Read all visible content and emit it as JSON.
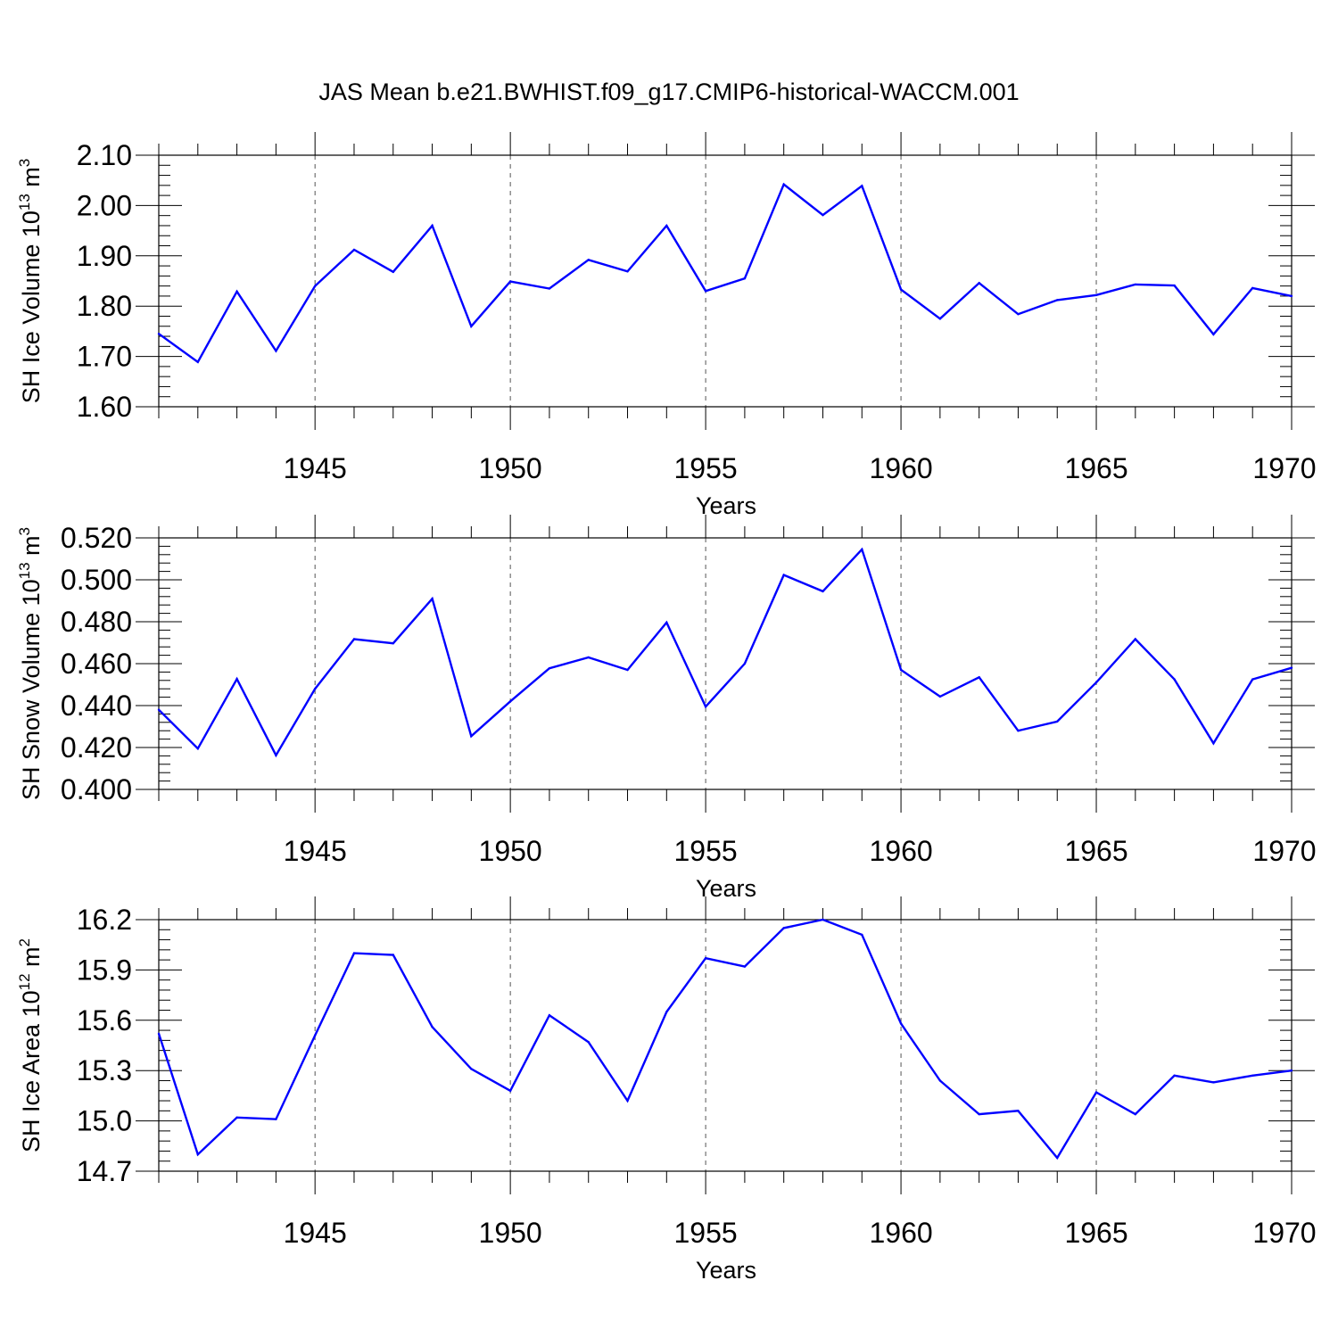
{
  "figure": {
    "title": "JAS Mean b.e21.BWHIST.f09_g17.CMIP6-historical-WACCM.001"
  },
  "colors": {
    "line": "#0000ff",
    "axis": "#000000"
  },
  "chart_data": [
    {
      "type": "line",
      "title": "",
      "xlabel": "Years",
      "ylabel": "SH Ice Volume 10",
      "ylabel_exp": "13",
      "ylabel_unit": " m",
      "ylabel_unit_exp": "3",
      "xlim": [
        1941,
        1970
      ],
      "ylim": [
        1.6,
        2.1
      ],
      "xticks": [
        1945,
        1950,
        1955,
        1960,
        1965,
        1970
      ],
      "xtick_labels": [
        "1945",
        "1950",
        "1955",
        "1960",
        "1965",
        "1970"
      ],
      "yticks": [
        1.6,
        1.7,
        1.8,
        1.9,
        2.0,
        2.1
      ],
      "ytick_labels": [
        "1.60",
        "1.70",
        "1.80",
        "1.90",
        "2.00",
        "2.10"
      ],
      "yminor_step": 0.02,
      "grid": "vertical dashed at major x ticks",
      "x": [
        1941,
        1942,
        1943,
        1944,
        1945,
        1946,
        1947,
        1948,
        1949,
        1950,
        1951,
        1952,
        1953,
        1954,
        1955,
        1956,
        1957,
        1958,
        1959,
        1960,
        1961,
        1962,
        1963,
        1964,
        1965,
        1966,
        1967,
        1968,
        1969,
        1970
      ],
      "y": [
        1.745,
        1.689,
        1.829,
        1.711,
        1.84,
        1.912,
        1.868,
        1.96,
        1.76,
        1.849,
        1.835,
        1.892,
        1.869,
        1.96,
        1.83,
        1.855,
        2.042,
        1.981,
        2.039,
        1.833,
        1.775,
        1.846,
        1.784,
        1.812,
        1.822,
        1.843,
        1.841,
        1.744,
        1.836,
        1.82
      ]
    },
    {
      "type": "line",
      "title": "",
      "xlabel": "Years",
      "ylabel": "SH Snow Volume 10",
      "ylabel_exp": "13",
      "ylabel_unit": " m",
      "ylabel_unit_exp": "3",
      "xlim": [
        1941,
        1970
      ],
      "ylim": [
        0.4,
        0.52
      ],
      "xticks": [
        1945,
        1950,
        1955,
        1960,
        1965,
        1970
      ],
      "xtick_labels": [
        "1945",
        "1950",
        "1955",
        "1960",
        "1965",
        "1970"
      ],
      "yticks": [
        0.4,
        0.42,
        0.44,
        0.46,
        0.48,
        0.5,
        0.52
      ],
      "ytick_labels": [
        "0.400",
        "0.420",
        "0.440",
        "0.460",
        "0.480",
        "0.500",
        "0.520"
      ],
      "yminor_step": 0.004,
      "grid": "vertical dashed at major x ticks",
      "x": [
        1941,
        1942,
        1943,
        1944,
        1945,
        1946,
        1947,
        1948,
        1949,
        1950,
        1951,
        1952,
        1953,
        1954,
        1955,
        1956,
        1957,
        1958,
        1959,
        1960,
        1961,
        1962,
        1963,
        1964,
        1965,
        1966,
        1967,
        1968,
        1969,
        1970
      ],
      "y": [
        0.438,
        0.4195,
        0.4527,
        0.4163,
        0.448,
        0.4717,
        0.4697,
        0.491,
        0.4254,
        0.442,
        0.4578,
        0.463,
        0.457,
        0.4796,
        0.4395,
        0.46,
        0.5023,
        0.4945,
        0.5145,
        0.457,
        0.4443,
        0.4535,
        0.428,
        0.4324,
        0.451,
        0.4717,
        0.4525,
        0.422,
        0.4525,
        0.458
      ]
    },
    {
      "type": "line",
      "title": "",
      "xlabel": "Years",
      "ylabel": "SH Ice Area 10",
      "ylabel_exp": "12",
      "ylabel_unit": " m",
      "ylabel_unit_exp": "2",
      "xlim": [
        1941,
        1970
      ],
      "ylim": [
        14.7,
        16.2
      ],
      "xticks": [
        1945,
        1950,
        1955,
        1960,
        1965,
        1970
      ],
      "xtick_labels": [
        "1945",
        "1950",
        "1955",
        "1960",
        "1965",
        "1970"
      ],
      "yticks": [
        14.7,
        15.0,
        15.3,
        15.6,
        15.9,
        16.2
      ],
      "ytick_labels": [
        "14.7",
        "15.0",
        "15.3",
        "15.6",
        "15.9",
        "16.2"
      ],
      "yminor_step": 0.06,
      "grid": "vertical dashed at major x ticks",
      "x": [
        1941,
        1942,
        1943,
        1944,
        1945,
        1946,
        1947,
        1948,
        1949,
        1950,
        1951,
        1952,
        1953,
        1954,
        1955,
        1956,
        1957,
        1958,
        1959,
        1960,
        1961,
        1962,
        1963,
        1964,
        1965,
        1966,
        1967,
        1968,
        1969,
        1970
      ],
      "y": [
        15.52,
        14.8,
        15.02,
        15.01,
        15.51,
        16.0,
        15.99,
        15.56,
        15.31,
        15.18,
        15.63,
        15.47,
        15.12,
        15.65,
        15.97,
        15.92,
        16.15,
        16.2,
        16.11,
        15.58,
        15.24,
        15.04,
        15.06,
        14.78,
        15.17,
        15.04,
        15.27,
        15.23,
        15.27,
        15.3
      ]
    }
  ]
}
